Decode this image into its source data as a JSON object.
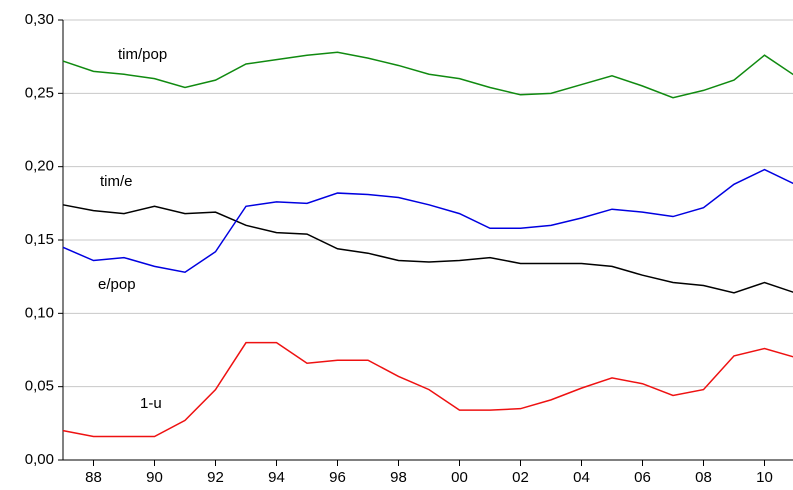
{
  "chart_data": {
    "type": "line",
    "x": [
      1987,
      1988,
      1989,
      1990,
      1991,
      1992,
      1993,
      1994,
      1995,
      1996,
      1997,
      1998,
      1999,
      2000,
      2001,
      2002,
      2003,
      2004,
      2005,
      2006,
      2007,
      2008,
      2009,
      2010,
      2011
    ],
    "xlim": [
      1987,
      2011
    ],
    "xticks": [
      {
        "value": 1988,
        "label": "88"
      },
      {
        "value": 1990,
        "label": "90"
      },
      {
        "value": 1992,
        "label": "92"
      },
      {
        "value": 1994,
        "label": "94"
      },
      {
        "value": 1996,
        "label": "96"
      },
      {
        "value": 1998,
        "label": "98"
      },
      {
        "value": 2000,
        "label": "00"
      },
      {
        "value": 2002,
        "label": "02"
      },
      {
        "value": 2004,
        "label": "04"
      },
      {
        "value": 2006,
        "label": "06"
      },
      {
        "value": 2008,
        "label": "08"
      },
      {
        "value": 2010,
        "label": "10"
      }
    ],
    "ylim": [
      0,
      0.3
    ],
    "yticks": [
      {
        "value": 0,
        "label": "0,00"
      },
      {
        "value": 0.05,
        "label": "0,05"
      },
      {
        "value": 0.1,
        "label": "0,10"
      },
      {
        "value": 0.15,
        "label": "0,15"
      },
      {
        "value": 0.2,
        "label": "0,20"
      },
      {
        "value": 0.25,
        "label": "0,25"
      },
      {
        "value": 0.3,
        "label": "0,30"
      }
    ],
    "grid": true,
    "series": [
      {
        "name": "tim/pop",
        "color": "#108a10",
        "values": [
          0.272,
          0.265,
          0.263,
          0.26,
          0.254,
          0.259,
          0.27,
          0.273,
          0.276,
          0.278,
          0.274,
          0.269,
          0.263,
          0.26,
          0.254,
          0.249,
          0.25,
          0.256,
          0.262,
          0.255,
          0.247,
          0.252,
          0.259,
          0.276,
          0.262
        ]
      },
      {
        "name": "tim/e",
        "color": "#000000",
        "values": [
          0.174,
          0.17,
          0.168,
          0.173,
          0.168,
          0.169,
          0.16,
          0.155,
          0.154,
          0.144,
          0.141,
          0.136,
          0.135,
          0.136,
          0.138,
          0.134,
          0.134,
          0.134,
          0.132,
          0.126,
          0.121,
          0.119,
          0.114,
          0.121,
          0.114
        ]
      },
      {
        "name": "e/pop",
        "color": "#0000e0",
        "values": [
          0.145,
          0.136,
          0.138,
          0.132,
          0.128,
          0.142,
          0.173,
          0.176,
          0.175,
          0.182,
          0.181,
          0.179,
          0.174,
          0.168,
          0.158,
          0.158,
          0.16,
          0.165,
          0.171,
          0.169,
          0.166,
          0.172,
          0.188,
          0.198,
          0.188
        ]
      },
      {
        "name": "1-u",
        "color": "#ee1111",
        "values": [
          0.02,
          0.016,
          0.016,
          0.016,
          0.027,
          0.048,
          0.08,
          0.08,
          0.066,
          0.068,
          0.068,
          0.057,
          0.048,
          0.034,
          0.034,
          0.035,
          0.041,
          0.049,
          0.056,
          0.052,
          0.044,
          0.048,
          0.071,
          0.076,
          0.07
        ]
      }
    ]
  }
}
